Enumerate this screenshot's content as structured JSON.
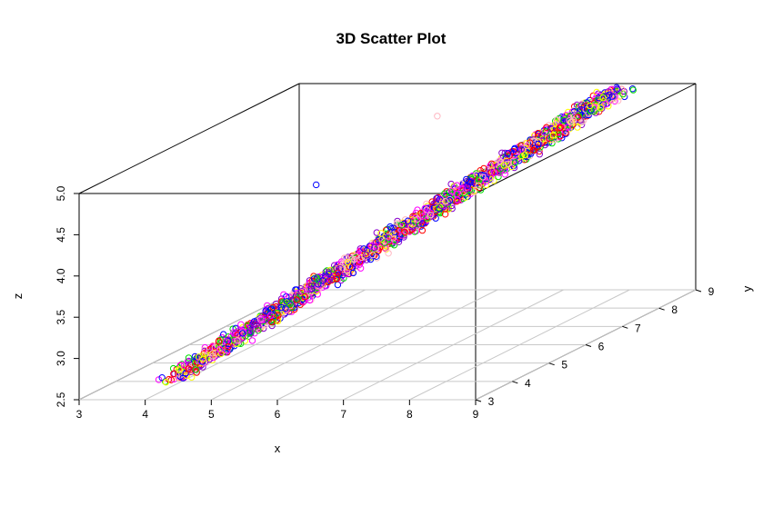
{
  "chart_data": {
    "type": "scatter",
    "title": "3D Scatter Plot",
    "xlabel": "x",
    "ylabel": "y",
    "zlabel": "z",
    "xlim": [
      3,
      9
    ],
    "ylim": [
      3,
      9
    ],
    "zlim": [
      2.5,
      5.0
    ],
    "x_ticks": [
      "3",
      "4",
      "5",
      "6",
      "7",
      "8",
      "9"
    ],
    "y_ticks": [
      "3",
      "4",
      "5",
      "6",
      "7",
      "8",
      "9"
    ],
    "z_ticks": [
      "2.5",
      "3.0",
      "3.5",
      "4.0",
      "4.5",
      "5.0"
    ],
    "marker": "open-circle",
    "grid": "x-y floor plane",
    "point_colors": [
      "#ff0000",
      "#00dd00",
      "#0000ff",
      "#ffff00",
      "#ff00ff",
      "#8800cc",
      "#ffb6c1"
    ],
    "trend": {
      "description": "points lie along a narrow band rising from low x/y/z to high x/y/z",
      "start": {
        "x": 4.3,
        "y": 3.2,
        "z": 2.7
      },
      "end": {
        "x": 7.9,
        "y": 8.8,
        "z": 4.95
      }
    },
    "outliers": [
      {
        "x": 5.2,
        "y": 5.5,
        "z": 4.55
      },
      {
        "x": 4.6,
        "y": 5.1,
        "z": 3.0
      },
      {
        "x": 6.2,
        "y": 7.0,
        "z": 5.05
      }
    ]
  }
}
